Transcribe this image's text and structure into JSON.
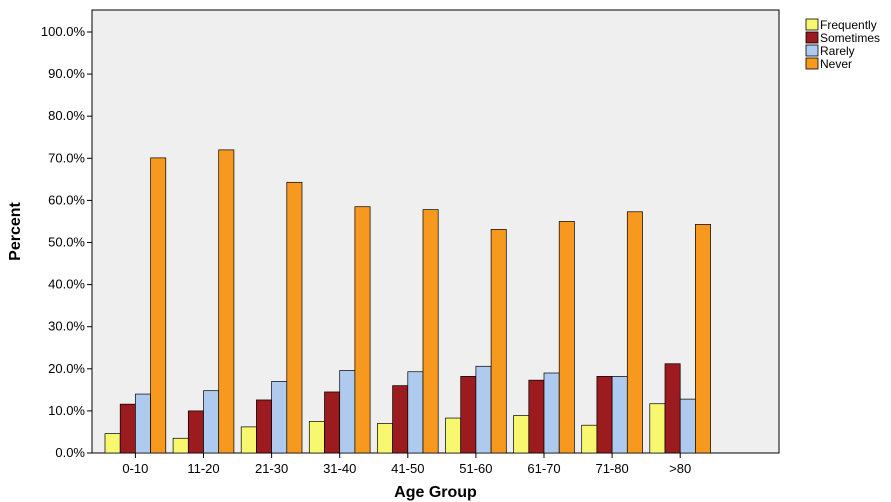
{
  "chart_data": {
    "type": "bar",
    "xlabel": "Age Group",
    "ylabel": "Percent",
    "ylim": [
      0,
      100
    ],
    "yticks": [
      0,
      10,
      20,
      30,
      40,
      50,
      60,
      70,
      80,
      90,
      100
    ],
    "ytick_labels": [
      "0.0%",
      "10.0%",
      "20.0%",
      "30.0%",
      "40.0%",
      "50.0%",
      "60.0%",
      "70.0%",
      "80.0%",
      "90.0%",
      "100.0%"
    ],
    "categories": [
      "0-10",
      "11-20",
      "21-30",
      "31-40",
      "41-50",
      "51-60",
      "61-70",
      "71-80",
      ">80"
    ],
    "legend_position": "top-right outside",
    "grid": false,
    "series": [
      {
        "name": "Frequently",
        "color": "#f8f870",
        "values": [
          4.6,
          3.5,
          6.2,
          7.5,
          7.0,
          8.3,
          8.9,
          6.6,
          11.7
        ]
      },
      {
        "name": "Sometimes",
        "color": "#9b1b1f",
        "values": [
          11.6,
          10.0,
          12.6,
          14.5,
          16.0,
          18.2,
          17.3,
          18.2,
          21.2
        ]
      },
      {
        "name": "Rarely",
        "color": "#aecbef",
        "values": [
          14.0,
          14.8,
          17.0,
          19.6,
          19.3,
          20.6,
          19.0,
          18.2,
          12.8
        ]
      },
      {
        "name": "Never",
        "color": "#f7991e",
        "values": [
          70.1,
          72.0,
          64.3,
          58.5,
          57.8,
          53.1,
          55.0,
          57.3,
          54.3
        ]
      }
    ],
    "plot_background": "#efefef"
  }
}
